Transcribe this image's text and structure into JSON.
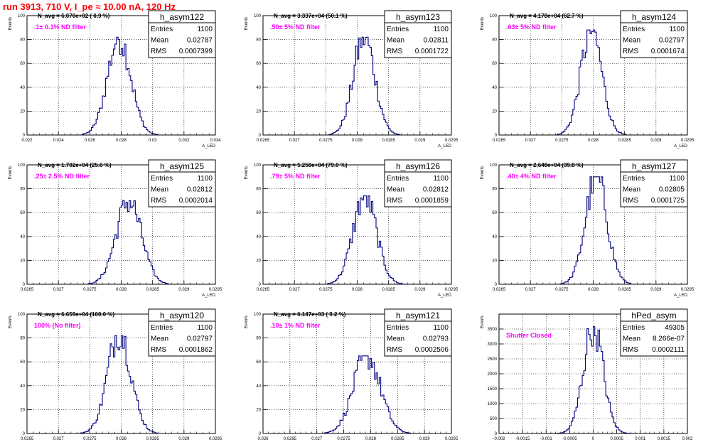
{
  "page_title": "run 3913,   710 V, I_pe ≈ 10.00 nA, 120 Hz",
  "stats_labels": {
    "entries": "Entries",
    "mean": "Mean",
    "rms": "RMS"
  },
  "colors": {
    "title": "#ff0000",
    "filter_label": "#ff00ff",
    "histogram": "#000080",
    "frame": "#000000",
    "grid": "#000000"
  },
  "chart_data": [
    {
      "type": "histogram",
      "name": "h_asym122",
      "grid": true,
      "ylabel": "Events",
      "xlabel": "A_LED",
      "navg": "N_avg = 6.070e+02 ( 0.9 %)",
      "filter": ".1± 0.1% ND filter",
      "stats": {
        "entries": "1100",
        "mean": "0.02787",
        "rms": "0.0007399"
      },
      "xlim": [
        0.022,
        0.034
      ],
      "ylim": [
        0,
        100
      ],
      "xticks": [
        0.022,
        0.024,
        0.026,
        0.028,
        0.03,
        0.032,
        0.034
      ],
      "xtick_labels": [
        "0.022",
        "0.024",
        "0.026",
        "0.028",
        "0.03",
        "0.032",
        "0.034"
      ],
      "yticks": [
        0,
        20,
        40,
        60,
        80,
        100
      ],
      "ytick_labels": [
        "0",
        "20",
        "40",
        "60",
        "80",
        "100"
      ],
      "mean_val": 0.02787,
      "sigma": 0.00074,
      "peak": 82
    },
    {
      "type": "histogram",
      "name": "h_asym123",
      "grid": true,
      "ylabel": "Events",
      "xlabel": "A_LED",
      "navg": "N_avg = 3.337e+04 (50.1 %)",
      "filter": ".50± 5% ND filter",
      "stats": {
        "entries": "1100",
        "mean": "0.02811",
        "rms": "0.0001722"
      },
      "xlim": [
        0.0265,
        0.0295
      ],
      "ylim": [
        0,
        100
      ],
      "xticks": [
        0.0265,
        0.027,
        0.0275,
        0.028,
        0.0285,
        0.029,
        0.0295
      ],
      "xtick_labels": [
        "0.0265",
        "0.027",
        "0.0275",
        "0.028",
        "0.0285",
        "0.029",
        "0.0295"
      ],
      "yticks": [
        0,
        20,
        40,
        60,
        80,
        100
      ],
      "ytick_labels": [
        "0",
        "20",
        "40",
        "60",
        "80",
        "100"
      ],
      "mean_val": 0.02811,
      "sigma": 0.000172,
      "peak": 82
    },
    {
      "type": "histogram",
      "name": "h_asym124",
      "grid": true,
      "ylabel": "Events",
      "xlabel": "A_LED",
      "navg": "N_avg = 4.178e+04 (62.7 %)",
      "filter": ".63± 5% ND filter",
      "stats": {
        "entries": "1100",
        "mean": "0.02797",
        "rms": "0.0001674"
      },
      "xlim": [
        0.0265,
        0.0295
      ],
      "ylim": [
        0,
        100
      ],
      "xticks": [
        0.0265,
        0.027,
        0.0275,
        0.028,
        0.0285,
        0.029,
        0.0295
      ],
      "xtick_labels": [
        "0.0265",
        "0.027",
        "0.0275",
        "0.028",
        "0.0285",
        "0.029",
        "0.0295"
      ],
      "yticks": [
        0,
        20,
        40,
        60,
        80,
        100
      ],
      "ytick_labels": [
        "0",
        "20",
        "40",
        "60",
        "80",
        "100"
      ],
      "mean_val": 0.02797,
      "sigma": 0.000167,
      "peak": 88
    },
    {
      "type": "histogram",
      "name": "h_asym125",
      "grid": true,
      "ylabel": "Events",
      "xlabel": "A_LED",
      "navg": "N_avg = 1.702e+04 (25.6 %)",
      "filter": ".25± 2.5% ND filter",
      "stats": {
        "entries": "1100",
        "mean": "0.02812",
        "rms": "0.0002014"
      },
      "xlim": [
        0.0265,
        0.0295
      ],
      "ylim": [
        0,
        100
      ],
      "xticks": [
        0.0265,
        0.027,
        0.0275,
        0.028,
        0.0285,
        0.029,
        0.0295
      ],
      "xtick_labels": [
        "0.0265",
        "0.027",
        "0.0275",
        "0.028",
        "0.0285",
        "0.029",
        "0.0295"
      ],
      "yticks": [
        0,
        20,
        40,
        60,
        80,
        100
      ],
      "ytick_labels": [
        "0",
        "20",
        "40",
        "60",
        "80",
        "100"
      ],
      "mean_val": 0.02812,
      "sigma": 0.000201,
      "peak": 70
    },
    {
      "type": "histogram",
      "name": "h_asym126",
      "grid": true,
      "ylabel": "Events",
      "xlabel": "A_LED",
      "navg": "N_avg = 5.258e+04 (79.0 %)",
      "filter": ".79± 5% ND filter",
      "stats": {
        "entries": "1100",
        "mean": "0.02812",
        "rms": "0.0001859"
      },
      "xlim": [
        0.0265,
        0.0295
      ],
      "ylim": [
        0,
        100
      ],
      "xticks": [
        0.0265,
        0.027,
        0.0275,
        0.028,
        0.0285,
        0.029,
        0.0295
      ],
      "xtick_labels": [
        "0.0265",
        "0.027",
        "0.0275",
        "0.028",
        "0.0285",
        "0.029",
        "0.0295"
      ],
      "yticks": [
        0,
        20,
        40,
        60,
        80,
        100
      ],
      "ytick_labels": [
        "0",
        "20",
        "40",
        "60",
        "80",
        "100"
      ],
      "mean_val": 0.02812,
      "sigma": 0.000186,
      "peak": 74
    },
    {
      "type": "histogram",
      "name": "h_asym127",
      "grid": true,
      "ylabel": "Events",
      "xlabel": "A_LED",
      "navg": "N_avg = 2.648e+04 (39.8 %)",
      "filter": ".40± 4% ND filter",
      "stats": {
        "entries": "1100",
        "mean": "0.02805",
        "rms": "0.0001725"
      },
      "xlim": [
        0.0265,
        0.0295
      ],
      "ylim": [
        0,
        100
      ],
      "xticks": [
        0.0265,
        0.027,
        0.0275,
        0.028,
        0.0285,
        0.029,
        0.0295
      ],
      "xtick_labels": [
        "0.0265",
        "0.027",
        "0.0275",
        "0.028",
        "0.0285",
        "0.029",
        "0.0295"
      ],
      "yticks": [
        0,
        20,
        40,
        60,
        80,
        100
      ],
      "ytick_labels": [
        "0",
        "20",
        "40",
        "60",
        "80",
        "100"
      ],
      "mean_val": 0.02805,
      "sigma": 0.000172,
      "peak": 90
    },
    {
      "type": "histogram",
      "name": "h_asym120",
      "grid": true,
      "ylabel": "Events",
      "xlabel": "A_LED",
      "navg": "N_avg = 6.659e+04 (100.0 %)",
      "filter": "100% (No filter)",
      "stats": {
        "entries": "1100",
        "mean": "0.02797",
        "rms": "0.0001862"
      },
      "xlim": [
        0.0265,
        0.0295
      ],
      "ylim": [
        0,
        100
      ],
      "xticks": [
        0.0265,
        0.027,
        0.0275,
        0.028,
        0.0285,
        0.029,
        0.0295
      ],
      "xtick_labels": [
        "0.0265",
        "0.027",
        "0.0275",
        "0.028",
        "0.0285",
        "0.029",
        "0.0295"
      ],
      "yticks": [
        0,
        20,
        40,
        60,
        80,
        100
      ],
      "ytick_labels": [
        "0",
        "20",
        "40",
        "60",
        "80",
        "100"
      ],
      "mean_val": 0.02797,
      "sigma": 0.000186,
      "peak": 85
    },
    {
      "type": "histogram",
      "name": "h_asym121",
      "grid": true,
      "ylabel": "Events",
      "xlabel": "A_LED",
      "navg": "N_avg = 6.147e+03 ( 9.2 %)",
      "filter": ".10± 1% ND filter",
      "stats": {
        "entries": "1100",
        "mean": "0.02793",
        "rms": "0.0002506"
      },
      "xlim": [
        0.026,
        0.0295
      ],
      "ylim": [
        0,
        100
      ],
      "xticks": [
        0.026,
        0.0265,
        0.027,
        0.0275,
        0.028,
        0.0285,
        0.029,
        0.0295
      ],
      "xtick_labels": [
        "0.026",
        "0.0265",
        "0.027",
        "0.0275",
        "0.028",
        "0.0285",
        "0.029",
        "0.0295"
      ],
      "yticks": [
        0,
        20,
        40,
        60,
        80,
        100
      ],
      "ytick_labels": [
        "0",
        "20",
        "40",
        "60",
        "80",
        "100"
      ],
      "mean_val": 0.02793,
      "sigma": 0.00025,
      "peak": 65
    },
    {
      "type": "histogram",
      "name": "hPed_asym",
      "grid": true,
      "ylabel": "Events",
      "xlabel": "",
      "navg": "",
      "filter": "Shutter Closed",
      "stats": {
        "entries": "49305",
        "mean": "8.266e-07",
        "rms": "0.0002111"
      },
      "xlim": [
        -0.002,
        0.002
      ],
      "ylim": [
        0,
        4000
      ],
      "xticks": [
        -0.002,
        -0.0015,
        -0.001,
        -0.0005,
        0,
        0.0005,
        0.001,
        0.0015,
        0.002
      ],
      "xtick_labels": [
        "-0.002",
        "-0.0015",
        "-0.001",
        "-0.0005",
        "0",
        "0.0005",
        "0.001",
        "0.0015",
        "0.002"
      ],
      "yticks": [
        0,
        500,
        1000,
        1500,
        2000,
        2500,
        3000,
        3500
      ],
      "ytick_labels": [
        "0",
        "500",
        "1000",
        "1500",
        "2000",
        "2500",
        "3000",
        "3500"
      ],
      "mean_val": 8.266e-07,
      "sigma": 0.000211,
      "peak": 3580
    }
  ]
}
